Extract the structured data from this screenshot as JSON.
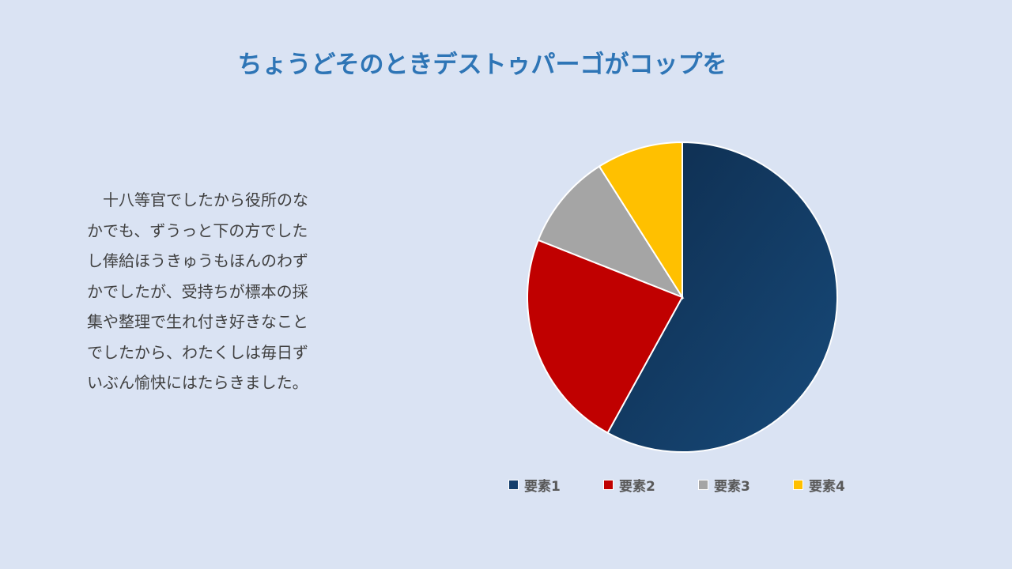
{
  "slide": {
    "title": "ちょうどそのときデストゥパーゴがコップを",
    "body": "十八等官でしたから役所のなかでも、ずうっと下の方でしたし俸給ほうきゅうもほんのわずかでしたが、受持ちが標本の採集や整理で生れ付き好きなことでしたから、わたくしは毎日ずいぶん愉快にはたらきました。"
  },
  "chart_data": {
    "type": "pie",
    "title": "",
    "categories": [
      "要素1",
      "要素2",
      "要素3",
      "要素4"
    ],
    "values": [
      58,
      23,
      10,
      9
    ],
    "colors": [
      "#163f6b",
      "#c00000",
      "#a5a5a5",
      "#ffc000"
    ],
    "start_angle_deg": 0,
    "direction": "clockwise",
    "legend_position": "bottom"
  }
}
